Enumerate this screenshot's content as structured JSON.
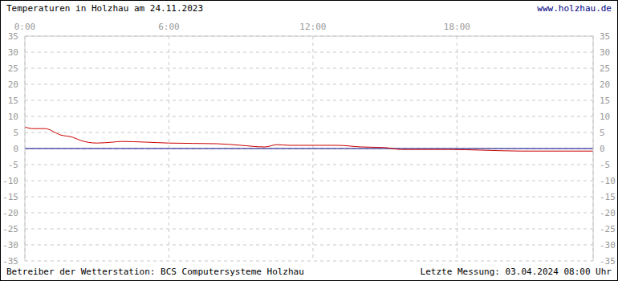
{
  "chart_data": {
    "type": "line",
    "title": "Temperaturen in Holzhau am 24.11.2023",
    "subtitle": "www.holzhau.de",
    "annotations": [
      "Betreiber der Wetterstation: BCS Computersysteme Holzhau",
      "Letzte Messung: 03.04.2024 08:00 Uhr"
    ],
    "x": [
      0,
      0.33,
      0.83,
      1.5,
      2,
      2.33,
      3,
      3.67,
      4,
      5,
      6,
      8,
      9,
      10,
      10.5,
      11,
      13,
      14,
      15,
      15.67,
      17.67,
      19,
      20.67,
      23.67
    ],
    "series": [
      {
        "color": "#000080",
        "values": [
          0,
          0,
          0,
          0,
          0,
          0,
          0,
          0,
          0,
          0,
          0,
          0,
          0,
          0,
          0,
          0,
          0,
          0,
          0,
          0,
          0,
          0,
          0,
          0
        ]
      },
      {
        "color": "#cc0000",
        "values": [
          6.7,
          6.2,
          6.2,
          4.2,
          3.5,
          2.5,
          1.7,
          2.0,
          2.2,
          2.0,
          1.7,
          1.5,
          1.0,
          0.5,
          1.2,
          1.0,
          1.0,
          0.5,
          0.3,
          -0.3,
          -0.3,
          -0.5,
          -0.8,
          -0.8
        ]
      }
    ],
    "xlim": [
      0,
      23.67
    ],
    "xticks": [
      {
        "value": 0,
        "label": "0:00"
      },
      {
        "value": 6,
        "label": "6:00"
      },
      {
        "value": 12,
        "label": "12:00"
      },
      {
        "value": 18,
        "label": "18:00"
      }
    ],
    "ylim": [
      -35,
      35
    ],
    "yticks": [
      -35,
      -30,
      -25,
      -20,
      -15,
      -10,
      -5,
      0,
      5,
      10,
      15,
      20,
      25,
      30,
      35
    ],
    "grid": true
  }
}
